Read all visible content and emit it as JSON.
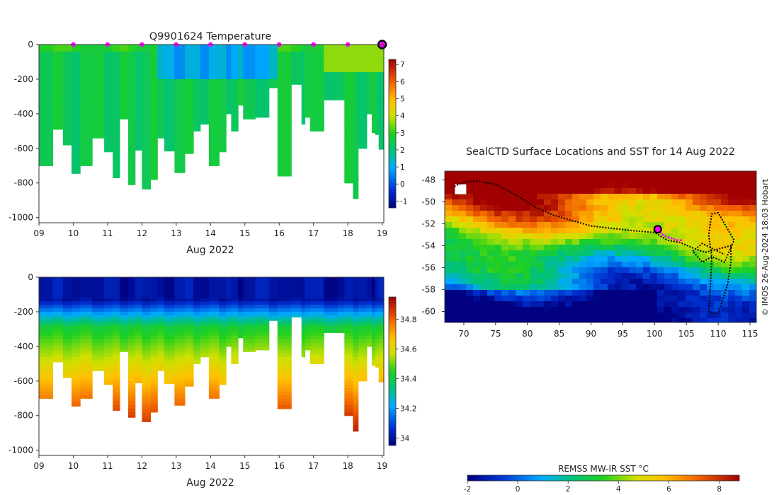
{
  "chart_data": [
    {
      "type": "heatmap",
      "title": "Q9901624  Temperature",
      "xlabel": "Aug 2022",
      "ylabel": "",
      "xlim": [
        9,
        19.05
      ],
      "ylim": [
        -1030,
        0
      ],
      "x_ticks": [
        "09",
        "10",
        "11",
        "12",
        "13",
        "14",
        "15",
        "16",
        "17",
        "18",
        "19"
      ],
      "y_ticks": [
        "0",
        "-200",
        "-400",
        "-600",
        "-800",
        "-1000"
      ],
      "colorbar": {
        "min": -1.4,
        "max": 7.3,
        "ticks": [
          "-1",
          "0",
          "1",
          "2",
          "3",
          "4",
          "5",
          "6",
          "7"
        ]
      },
      "surface_markers_day": [
        10,
        11,
        12,
        13,
        14,
        15,
        16,
        17,
        18
      ],
      "current_position_day": 19,
      "profiles": [
        {
          "day": 9.0,
          "depth": 700
        },
        {
          "day": 9.4,
          "depth": 490
        },
        {
          "day": 9.7,
          "depth": 580
        },
        {
          "day": 9.95,
          "depth": 745
        },
        {
          "day": 10.2,
          "depth": 700
        },
        {
          "day": 10.55,
          "depth": 540
        },
        {
          "day": 10.9,
          "depth": 620
        },
        {
          "day": 11.15,
          "depth": 770
        },
        {
          "day": 11.35,
          "depth": 430
        },
        {
          "day": 11.6,
          "depth": 810
        },
        {
          "day": 11.8,
          "depth": 610
        },
        {
          "day": 12.0,
          "depth": 835
        },
        {
          "day": 12.25,
          "depth": 780
        },
        {
          "day": 12.45,
          "depth": 540
        },
        {
          "day": 12.65,
          "depth": 615
        },
        {
          "day": 12.95,
          "depth": 740
        },
        {
          "day": 13.25,
          "depth": 630
        },
        {
          "day": 13.5,
          "depth": 500
        },
        {
          "day": 13.7,
          "depth": 460
        },
        {
          "day": 13.95,
          "depth": 700
        },
        {
          "day": 14.25,
          "depth": 620
        },
        {
          "day": 14.45,
          "depth": 400
        },
        {
          "day": 14.6,
          "depth": 500
        },
        {
          "day": 14.8,
          "depth": 350
        },
        {
          "day": 14.95,
          "depth": 430
        },
        {
          "day": 15.3,
          "depth": 420
        },
        {
          "day": 15.7,
          "depth": 250
        },
        {
          "day": 15.95,
          "depth": 760
        },
        {
          "day": 16.35,
          "depth": 230
        },
        {
          "day": 16.65,
          "depth": 460
        },
        {
          "day": 16.75,
          "depth": 420
        },
        {
          "day": 16.9,
          "depth": 500
        },
        {
          "day": 17.3,
          "depth": 320
        },
        {
          "day": 17.7,
          "depth": 320
        },
        {
          "day": 17.9,
          "depth": 800
        },
        {
          "day": 18.15,
          "depth": 890
        },
        {
          "day": 18.3,
          "depth": 600
        },
        {
          "day": 18.55,
          "depth": 400
        },
        {
          "day": 18.7,
          "depth": 510
        },
        {
          "day": 18.8,
          "depth": 520
        },
        {
          "day": 18.9,
          "depth": 605
        }
      ]
    },
    {
      "type": "heatmap",
      "title": "",
      "xlabel": "Aug 2022",
      "ylabel": "",
      "xlim": [
        9,
        19.05
      ],
      "ylim": [
        -1030,
        0
      ],
      "x_ticks": [
        "09",
        "10",
        "11",
        "12",
        "13",
        "14",
        "15",
        "16",
        "17",
        "18",
        "19"
      ],
      "y_ticks": [
        "0",
        "-200",
        "-400",
        "-600",
        "-800",
        "-1000"
      ],
      "colorbar": {
        "min": 33.95,
        "max": 34.95,
        "ticks": [
          "34",
          "34.2",
          "34.4",
          "34.6",
          "34.8"
        ]
      }
    },
    {
      "type": "heatmap",
      "title": "SealCTD Surface Locations and SST for 14 Aug 2022",
      "xlabel": "",
      "ylabel": "",
      "xlim": [
        67,
        116
      ],
      "ylim": [
        -61,
        -47.2
      ],
      "x_ticks": [
        "70",
        "75",
        "80",
        "85",
        "90",
        "95",
        "100",
        "105",
        "110",
        "115"
      ],
      "y_ticks": [
        "-48",
        "-50",
        "-52",
        "-54",
        "-56",
        "-58",
        "-60"
      ],
      "colorbar": {
        "label": "REMSS MW-IR SST °C",
        "min": -2,
        "max": 8.8,
        "ticks": [
          "-2",
          "0",
          "2",
          "4",
          "6",
          "8"
        ]
      },
      "current_position": {
        "lon": 100.5,
        "lat": -52.5
      },
      "track_lon_lat": [
        [
          68.5,
          -48.6
        ],
        [
          70,
          -48.2
        ],
        [
          72,
          -48.1
        ],
        [
          75,
          -48.4
        ],
        [
          78,
          -49.3
        ],
        [
          81,
          -50.4
        ],
        [
          84,
          -51.2
        ],
        [
          87,
          -51.7
        ],
        [
          90,
          -52.2
        ],
        [
          93,
          -52.4
        ],
        [
          96,
          -52.6
        ],
        [
          98,
          -52.7
        ],
        [
          100,
          -52.8
        ],
        [
          102,
          -53.5
        ],
        [
          104,
          -53.7
        ],
        [
          106,
          -54.2
        ],
        [
          108,
          -54.6
        ],
        [
          110,
          -54.3
        ],
        [
          112,
          -54.0
        ],
        [
          112,
          -55.5
        ],
        [
          111.5,
          -57.5
        ],
        [
          110,
          -60.2
        ],
        [
          108.5,
          -60.0
        ],
        [
          108.8,
          -57.5
        ],
        [
          109,
          -55.0
        ],
        [
          108.5,
          -53.0
        ],
        [
          109,
          -51.1
        ],
        [
          110,
          -51.0
        ],
        [
          111,
          -52.0
        ],
        [
          112.5,
          -53.5
        ],
        [
          111,
          -55.5
        ],
        [
          109,
          -55.0
        ],
        [
          107.5,
          -55.5
        ],
        [
          106,
          -54.5
        ],
        [
          107.5,
          -53.8
        ],
        [
          111,
          -54.8
        ]
      ],
      "recent_track_lon_lat": [
        [
          100.5,
          -52.5
        ],
        [
          101.5,
          -53.1
        ],
        [
          102.5,
          -53.3
        ],
        [
          103.5,
          -53.5
        ],
        [
          104.5,
          -53.5
        ]
      ]
    }
  ],
  "side_note": "© IMOS 26-Aug-2024 18:03 Hobart",
  "colors": {
    "marker": "#ff00ff",
    "current_edge": "#000000"
  }
}
